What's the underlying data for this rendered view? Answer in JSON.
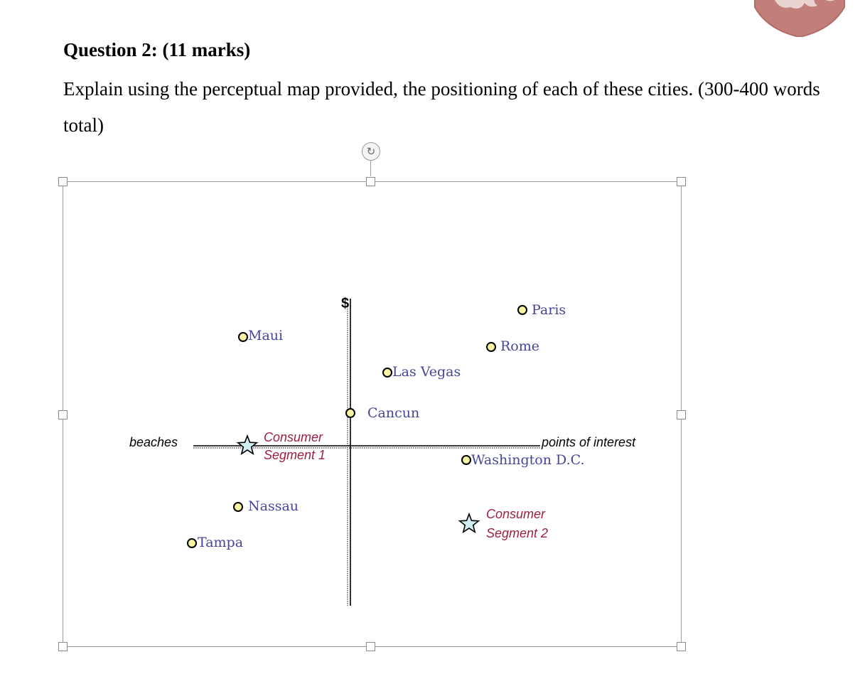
{
  "header": {
    "title": "Question 2: (11 marks)",
    "prompt": "Explain using the perceptual map provided, the positioning of each of these cities. (300-400 words total)"
  },
  "colors": {
    "city_label": "#45469a",
    "segment_label": "#9b2040",
    "marker_fill": "#f7f3a0",
    "star_fill": "#cfeef4",
    "logo": "#c27f79"
  },
  "perceptual_map": {
    "y_axis_label": "$",
    "x_axis_left_label": "beaches",
    "x_axis_right_label": "points of interest",
    "cities": [
      {
        "name": "Paris"
      },
      {
        "name": "Maui"
      },
      {
        "name": "Rome"
      },
      {
        "name": "Las Vegas"
      },
      {
        "name": "Cancun"
      },
      {
        "name": "Washington D.C."
      },
      {
        "name": "Nassau"
      },
      {
        "name": "Tampa"
      }
    ],
    "segments": [
      {
        "line1": "Consumer",
        "line2": "Segment 1"
      },
      {
        "line1": "Consumer",
        "line2": "Segment 2"
      }
    ]
  }
}
